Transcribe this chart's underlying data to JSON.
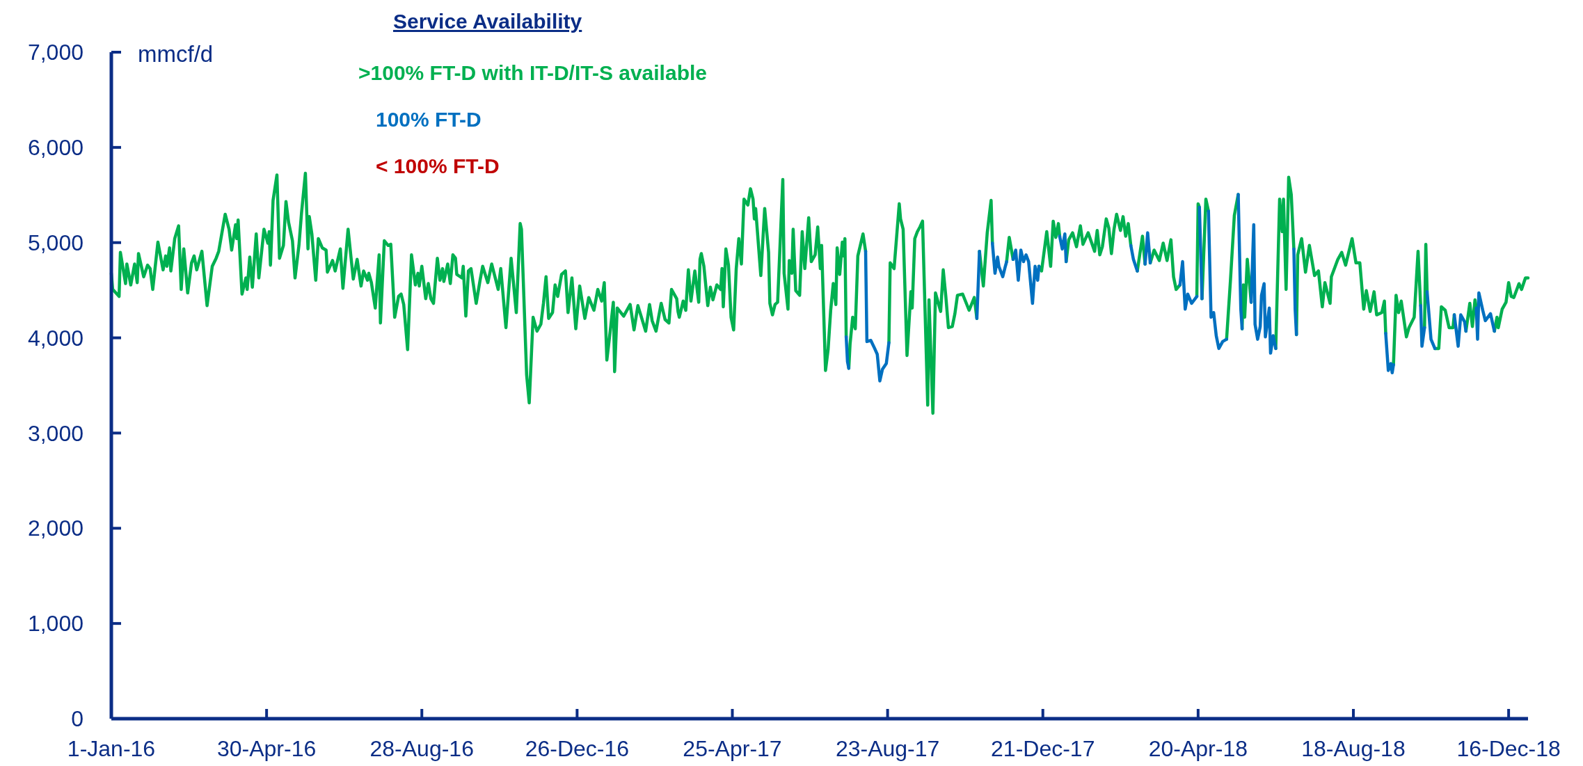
{
  "chart_data": {
    "type": "line",
    "legend_title": "Service Availability",
    "ylabel": "mmcf/d",
    "legend": "top left",
    "xlim": [
      "2016-01-01",
      "2018-12-31"
    ],
    "xticks": [
      {
        "value": "2016-01-01",
        "label": "1-Jan-16"
      },
      {
        "value": "2016-04-30",
        "label": "30-Apr-16"
      },
      {
        "value": "2016-08-28",
        "label": "28-Aug-16"
      },
      {
        "value": "2016-12-26",
        "label": "26-Dec-16"
      },
      {
        "value": "2017-04-25",
        "label": "25-Apr-17"
      },
      {
        "value": "2017-08-23",
        "label": "23-Aug-17"
      },
      {
        "value": "2017-12-21",
        "label": "21-Dec-17"
      },
      {
        "value": "2018-04-20",
        "label": "20-Apr-18"
      },
      {
        "value": "2018-08-18",
        "label": "18-Aug-18"
      },
      {
        "value": "2018-12-16",
        "label": "16-Dec-18"
      }
    ],
    "ylim": [
      0,
      7000
    ],
    "yticks": [
      0,
      {
        "value": 1000,
        "label": "1,000"
      },
      {
        "value": 2000,
        "label": "2,000"
      },
      {
        "value": 3000,
        "label": "3,000"
      },
      {
        "value": 4000,
        "label": "4,000"
      },
      {
        "value": 5000,
        "label": "5,000"
      },
      {
        "value": 6000,
        "label": "6,000"
      },
      {
        "value": 7000,
        "label": "7,000"
      }
    ],
    "series": [
      {
        "name": ">100% FT-D with IT-D/IT-S available",
        "color": "#00b050",
        "x": [
          "2016-01-01",
          "2016-01-02",
          "2016-01-07",
          "2016-01-08",
          "2016-01-12",
          "2016-01-13",
          "2016-01-16",
          "2016-01-19",
          "2016-01-21",
          "2016-01-22",
          "2016-01-26",
          "2016-01-29",
          "2016-01-31",
          "2016-02-02",
          "2016-02-06",
          "2016-02-10",
          "2016-02-12",
          "2016-02-13",
          "2016-02-15",
          "2016-02-16",
          "2016-02-19",
          "2016-02-22",
          "2016-02-24",
          "2016-02-26",
          "2016-02-29",
          "2016-03-03",
          "2016-03-05",
          "2016-03-07",
          "2016-03-11",
          "2016-03-15",
          "2016-03-19",
          "2016-03-22",
          "2016-03-24",
          "2016-03-29",
          "2016-04-01",
          "2016-04-03",
          "2016-04-06",
          "2016-04-07",
          "2016-04-08",
          "2016-04-11",
          "2016-04-14",
          "2016-04-15",
          "2016-04-17",
          "2016-04-19",
          "2016-04-22",
          "2016-04-24",
          "2016-04-28",
          "2016-05-01",
          "2016-05-02",
          "2016-05-03",
          "2016-05-05",
          "2016-05-08",
          "2016-05-10",
          "2016-05-13",
          "2016-05-15",
          "2016-05-17",
          "2016-05-20",
          "2016-05-22",
          "2016-05-25",
          "2016-05-27",
          "2016-05-30",
          "2016-06-01",
          "2016-06-02",
          "2016-06-04",
          "2016-06-07",
          "2016-06-09",
          "2016-06-12",
          "2016-06-15",
          "2016-06-16",
          "2016-06-20",
          "2016-06-22",
          "2016-06-26",
          "2016-06-28",
          "2016-07-02",
          "2016-07-06",
          "2016-07-09",
          "2016-07-12",
          "2016-07-14",
          "2016-07-17",
          "2016-07-18",
          "2016-07-20",
          "2016-07-23",
          "2016-07-26",
          "2016-07-27",
          "2016-07-30",
          "2016-08-02",
          "2016-08-04",
          "2016-08-07",
          "2016-08-10",
          "2016-08-12",
          "2016-08-14",
          "2016-08-17",
          "2016-08-20",
          "2016-08-23",
          "2016-08-25",
          "2016-08-26",
          "2016-08-28",
          "2016-08-31",
          "2016-09-02",
          "2016-09-04",
          "2016-09-06",
          "2016-09-09",
          "2016-09-11",
          "2016-09-13",
          "2016-09-14",
          "2016-09-17",
          "2016-09-19",
          "2016-09-21",
          "2016-09-23",
          "2016-09-24",
          "2016-09-28",
          "2016-09-29",
          "2016-10-01",
          "2016-10-03",
          "2016-10-05",
          "2016-10-09",
          "2016-10-12",
          "2016-10-14",
          "2016-10-18",
          "2016-10-21",
          "2016-10-26",
          "2016-10-28",
          "2016-11-01",
          "2016-11-05",
          "2016-11-09",
          "2016-11-12",
          "2016-11-13",
          "2016-11-17",
          "2016-11-19",
          "2016-11-22",
          "2016-11-25",
          "2016-11-28",
          "2016-11-30",
          "2016-12-02",
          "2016-12-04",
          "2016-12-07",
          "2016-12-09",
          "2016-12-11",
          "2016-12-14",
          "2016-12-17",
          "2016-12-19",
          "2016-12-22",
          "2016-12-25",
          "2016-12-28",
          "2017-01-01",
          "2017-01-04",
          "2017-01-08",
          "2017-01-11",
          "2017-01-14",
          "2017-01-16",
          "2017-01-18",
          "2017-01-21",
          "2017-01-23",
          "2017-01-24",
          "2017-01-26",
          "2017-01-31",
          "2017-02-05",
          "2017-02-08",
          "2017-02-11",
          "2017-02-17",
          "2017-02-20",
          "2017-02-22",
          "2017-02-25",
          "2017-03-01",
          "2017-03-04",
          "2017-03-07",
          "2017-03-09",
          "2017-03-13",
          "2017-03-14",
          "2017-03-15",
          "2017-03-18",
          "2017-03-20",
          "2017-03-22",
          "2017-03-24",
          "2017-03-27",
          "2017-03-30",
          "2017-03-31",
          "2017-04-01",
          "2017-04-03",
          "2017-04-06",
          "2017-04-08",
          "2017-04-10",
          "2017-04-13",
          "2017-04-16",
          "2017-04-17",
          "2017-04-18",
          "2017-04-20",
          "2017-04-22",
          "2017-04-24",
          "2017-04-26",
          "2017-04-28",
          "2017-04-30",
          "2017-05-02",
          "2017-05-04",
          "2017-05-07",
          "2017-05-09",
          "2017-05-11",
          "2017-05-12",
          "2017-05-13",
          "2017-05-17",
          "2017-05-20",
          "2017-05-23",
          "2017-05-24",
          "2017-05-26",
          "2017-05-28",
          "2017-05-30",
          "2017-06-03",
          "2017-06-04",
          "2017-06-07",
          "2017-06-08",
          "2017-06-10",
          "2017-06-11",
          "2017-06-13",
          "2017-06-16",
          "2017-06-18",
          "2017-06-20",
          "2017-06-23",
          "2017-06-25",
          "2017-06-28",
          "2017-06-30",
          "2017-07-02",
          "2017-07-03",
          "2017-07-06",
          "2017-07-08",
          "2017-07-10",
          "2017-07-12",
          "2017-07-14",
          "2017-07-15",
          "2017-07-17",
          "2017-07-19",
          "2017-07-20",
          "2017-07-21",
          "2017-07-22",
          "2017-07-23",
          "2017-07-24",
          "2017-07-25",
          "2017-07-27",
          "2017-07-29",
          "2017-07-31",
          "2017-08-04",
          "2017-08-06",
          "2017-08-07",
          "2017-08-10",
          "2017-08-13",
          "2017-08-15",
          "2017-08-17",
          "2017-08-19",
          "2017-08-22",
          "2017-08-24",
          "2017-08-25",
          "2017-08-28",
          "2017-08-29",
          "2017-09-01",
          "2017-09-02",
          "2017-09-04",
          "2017-09-07",
          "2017-09-10",
          "2017-09-11",
          "2017-09-13",
          "2017-09-15",
          "2017-09-17",
          "2017-09-19",
          "2017-09-23",
          "2017-09-24",
          "2017-09-27",
          "2017-09-29",
          "2017-10-03",
          "2017-10-05",
          "2017-10-07",
          "2017-10-09",
          "2017-10-12",
          "2017-10-14",
          "2017-10-16",
          "2017-10-20",
          "2017-10-25",
          "2017-10-29",
          "2017-10-31",
          "2017-11-01",
          "2017-11-02",
          "2017-11-05",
          "2017-11-08",
          "2017-11-11",
          "2017-11-12",
          "2017-11-14",
          "2017-11-16",
          "2017-11-17",
          "2017-11-20",
          "2017-11-22",
          "2017-11-23",
          "2017-11-25",
          "2017-11-28",
          "2017-11-30",
          "2017-12-02",
          "2017-12-04",
          "2017-12-06",
          "2017-12-08",
          "2017-12-10",
          "2017-12-13",
          "2017-12-15",
          "2017-12-17",
          "2017-12-18",
          "2017-12-20",
          "2017-12-24",
          "2017-12-27",
          "2017-12-29",
          "2017-12-31",
          "2018-01-02",
          "2018-01-03",
          "2018-01-05",
          "2018-01-07",
          "2018-01-08",
          "2018-01-10",
          "2018-01-13",
          "2018-01-16",
          "2018-01-19",
          "2018-01-21",
          "2018-01-25",
          "2018-01-30",
          "2018-02-01",
          "2018-02-03",
          "2018-02-05",
          "2018-02-08",
          "2018-02-10",
          "2018-02-12",
          "2018-02-14",
          "2018-02-16",
          "2018-02-19",
          "2018-02-21",
          "2018-02-23",
          "2018-02-25",
          "2018-02-27",
          "2018-03-01",
          "2018-03-04",
          "2018-03-08",
          "2018-03-10",
          "2018-03-12",
          "2018-03-14",
          "2018-03-17",
          "2018-03-21",
          "2018-03-24",
          "2018-03-27",
          "2018-03-30",
          "2018-04-01",
          "2018-04-03",
          "2018-04-06",
          "2018-04-08",
          "2018-04-10",
          "2018-04-12",
          "2018-04-15",
          "2018-04-19",
          "2018-04-20",
          "2018-04-21",
          "2018-04-22",
          "2018-04-23",
          "2018-04-26",
          "2018-04-28",
          "2018-04-30",
          "2018-05-02",
          "2018-05-04",
          "2018-05-06",
          "2018-05-09",
          "2018-05-12",
          "2018-05-15",
          "2018-05-18",
          "2018-05-21",
          "2018-05-23",
          "2018-05-24",
          "2018-05-25",
          "2018-05-26",
          "2018-05-28",
          "2018-05-31",
          "2018-06-02",
          "2018-06-03",
          "2018-06-05",
          "2018-06-07",
          "2018-06-08",
          "2018-06-10",
          "2018-06-11",
          "2018-06-14",
          "2018-06-15",
          "2018-06-17",
          "2018-06-19",
          "2018-06-22",
          "2018-06-24",
          "2018-06-25",
          "2018-06-27",
          "2018-06-29",
          "2018-07-01",
          "2018-07-03",
          "2018-07-04",
          "2018-07-05",
          "2018-07-06",
          "2018-07-09",
          "2018-07-12",
          "2018-07-15",
          "2018-07-19",
          "2018-07-22",
          "2018-07-25",
          "2018-07-27",
          "2018-07-31",
          "2018-08-01",
          "2018-08-06",
          "2018-08-09",
          "2018-08-12",
          "2018-08-17",
          "2018-08-20",
          "2018-08-23",
          "2018-08-26",
          "2018-08-28",
          "2018-08-31",
          "2018-09-03",
          "2018-09-05",
          "2018-09-09",
          "2018-09-11",
          "2018-09-12",
          "2018-09-14",
          "2018-09-16",
          "2018-09-17",
          "2018-09-18",
          "2018-09-20",
          "2018-09-22",
          "2018-09-24",
          "2018-09-28",
          "2018-09-30",
          "2018-10-04",
          "2018-10-07",
          "2018-10-09",
          "2018-10-10",
          "2018-10-12",
          "2018-10-13",
          "2018-10-14",
          "2018-10-17",
          "2018-10-20",
          "2018-10-23",
          "2018-10-25",
          "2018-10-28",
          "2018-10-31",
          "2018-11-03",
          "2018-11-04",
          "2018-11-07",
          "2018-11-09",
          "2018-11-12",
          "2018-11-13",
          "2018-11-16",
          "2018-11-18",
          "2018-11-20",
          "2018-11-21",
          "2018-11-22",
          "2018-11-23",
          "2018-11-26",
          "2018-11-28",
          "2018-12-02",
          "2018-12-05",
          "2018-12-07",
          "2018-12-08",
          "2018-12-11",
          "2018-12-14",
          "2018-12-16",
          "2018-12-18",
          "2018-12-20",
          "2018-12-24",
          "2018-12-26",
          "2018-12-29",
          "2018-12-31"
        ],
        "values": [
          4678,
          4510,
          4435,
          4897,
          4570,
          4775,
          4556,
          4775,
          4580,
          4885,
          4641,
          4763,
          4727,
          4508,
          5006,
          4714,
          4860,
          4751,
          4945,
          4702,
          5042,
          5176,
          4508,
          4934,
          4471,
          4787,
          4860,
          4714,
          4909,
          4338,
          4751,
          4836,
          4909,
          5298,
          5140,
          4921,
          5188,
          5042,
          5237,
          4459,
          4629,
          4508,
          4848,
          4532,
          5091,
          4629,
          5140,
          4994,
          5115,
          4763,
          5443,
          5711,
          4836,
          4970,
          5431,
          5213,
          5019,
          4629,
          4970,
          5310,
          5728,
          4934,
          5273,
          5091,
          4605,
          5042,
          4945,
          4921,
          4690,
          4812,
          4702,
          4934,
          4520,
          5140,
          4617,
          4824,
          4544,
          4702,
          4605,
          4678,
          4580,
          4313,
          4872,
          4156,
          5019,
          4970,
          4982,
          4216,
          4435,
          4459,
          4350,
          3876,
          4872,
          4556,
          4678,
          4544,
          4751,
          4411,
          4570,
          4411,
          4362,
          4836,
          4605,
          4727,
          4593,
          4775,
          4570,
          4872,
          4836,
          4666,
          4629,
          4751,
          4228,
          4702,
          4727,
          4362,
          4605,
          4751,
          4580,
          4775,
          4508,
          4727,
          4107,
          4836,
          4265,
          5200,
          5140,
          3609,
          3317,
          4216,
          4070,
          4143,
          4362,
          4642,
          4204,
          4265,
          4556,
          4435,
          4666,
          4702,
          4265,
          4629,
          4095,
          4544,
          4204,
          4423,
          4289,
          4508,
          4386,
          4580,
          3767,
          4119,
          4374,
          3645,
          4313,
          4228,
          4350,
          4083,
          4338,
          4070,
          4350,
          4180,
          4070,
          4362,
          4192,
          4156,
          4508,
          4411,
          4277,
          4216,
          4386,
          4289,
          4714,
          4386,
          4702,
          4374,
          4824,
          4885,
          4751,
          4338,
          4532,
          4399,
          4556,
          4508,
          4727,
          4326,
          4934,
          4763,
          4216,
          4083,
          4727,
          5042,
          4775,
          5456,
          5395,
          5565,
          5456,
          5249,
          5358,
          4654,
          5358,
          4897,
          4362,
          4241,
          4350,
          4374,
          5662,
          4678,
          4301,
          4812,
          4678,
          5140,
          4496,
          4447,
          5115,
          4727,
          5261,
          4800,
          4872,
          5164,
          4727,
          4970,
          3657,
          3876,
          4289,
          4570,
          4350,
          4945,
          4666,
          5006,
          4860,
          5042,
          4010,
          null,
          3680,
          3937,
          4216,
          4095,
          4860,
          5091,
          4909,
          null,
          null,
          null,
          null,
          null,
          null,
          null,
          3949,
          4787,
          4727,
          4897,
          5408,
          5249,
          5140,
          3815,
          4484,
          4313,
          5042,
          5115,
          5164,
          5225,
          3293,
          4399,
          3208,
          4471,
          4277,
          4714,
          4435,
          4107,
          4119,
          4253,
          4447,
          4459,
          4289,
          4423,
          4204,
          null,
          4909,
          4544,
          5103,
          5443,
          4994,
          null,
          null,
          null,
          null,
          null,
          4800,
          5055,
          4824,
          null,
          null,
          null,
          null,
          null,
          null,
          null,
          null,
          null,
          4751,
          4702,
          5115,
          4751,
          5225,
          5055,
          5200,
          5067,
          null,
          null,
          4800,
          5030,
          5103,
          4957,
          5176,
          4982,
          5103,
          4909,
          5128,
          4872,
          4957,
          5249,
          5152,
          4885,
          5140,
          5298,
          5128,
          5273,
          5067,
          5200,
          4970,
          null,
          4702,
          5067,
          4775,
          null,
          4787,
          4921,
          4812,
          4994,
          4812,
          5030,
          4642,
          4508,
          4556,
          null,
          null,
          null,
          null,
          4435,
          5408,
          5370,
          null,
          4411,
          5456,
          5330,
          null,
          null,
          null,
          null,
          null,
          3985,
          4605,
          5285,
          5505,
          null,
          4095,
          4556,
          4216,
          4824,
          4374,
          null,
          null,
          null,
          null,
          null,
          null,
          null,
          null,
          null,
          null,
          3888,
          5456,
          5115,
          5456,
          4508,
          5686,
          5504,
          4933,
          null,
          4034,
          4872,
          5042,
          4690,
          4970,
          4654,
          4702,
          4326,
          4580,
          4362,
          4642,
          4824,
          4897,
          4763,
          5042,
          4787,
          4787,
          4301,
          4496,
          4277,
          4484,
          4241,
          4265,
          4386,
          4046,
          null,
          null,
          null,
          3718,
          4447,
          4265,
          4386,
          4010,
          4107,
          4216,
          4909,
          4338,
          null,
          4107,
          4982,
          4484,
          null,
          3888,
          3888,
          4326,
          4289,
          4107,
          4107,
          4241,
          null,
          null,
          null,
          4070,
          4362,
          4119,
          4399,
          4313,
          null,
          null,
          null,
          null,
          null,
          4070,
          4216,
          4107,
          4301,
          4374,
          4580,
          4435,
          4423,
          4569,
          4508,
          4629,
          4629
        ]
      },
      {
        "name": "100% FT-D",
        "color": "#0070c0",
        "x": [
          "2017-07-22",
          "2017-07-23",
          "2017-07-24",
          "2017-07-30",
          "2017-08-06",
          "2017-08-07",
          "2017-08-10",
          "2017-08-13",
          "2017-08-15",
          "2017-08-17",
          "2017-08-19",
          "2017-08-22",
          "2017-08-24",
          "2017-09-30",
          "2017-10-31",
          "2017-11-01",
          "2017-11-02",
          "2017-11-05",
          "2017-11-12",
          "2017-11-14",
          "2017-11-16",
          "2017-11-17",
          "2017-11-20",
          "2017-11-22",
          "2017-11-23",
          "2017-11-25",
          "2017-11-28",
          "2017-11-30",
          "2017-12-02",
          "2017-12-04",
          "2017-12-06",
          "2017-12-08",
          "2017-12-10",
          "2017-12-13",
          "2017-12-15",
          "2017-12-17",
          "2017-12-18",
          "2017-12-24",
          "2018-01-03",
          "2018-01-05",
          "2018-01-07",
          "2018-01-08",
          "2018-02-01",
          "2018-02-27",
          "2018-03-01",
          "2018-03-04",
          "2018-03-08",
          "2018-03-10",
          "2018-03-12",
          "2018-03-14",
          "2018-03-24",
          "2018-04-06",
          "2018-04-08",
          "2018-04-10",
          "2018-04-12",
          "2018-04-15",
          "2018-04-19",
          "2018-04-20",
          "2018-04-21",
          "2018-04-22",
          "2018-04-23",
          "2018-04-26",
          "2018-04-28",
          "2018-04-30",
          "2018-05-02",
          "2018-05-04",
          "2018-05-06",
          "2018-05-09",
          "2018-05-12",
          "2018-05-18",
          "2018-05-21",
          "2018-05-23",
          "2018-05-24",
          "2018-05-28",
          "2018-05-31",
          "2018-06-02",
          "2018-06-03",
          "2018-06-05",
          "2018-06-07",
          "2018-06-08",
          "2018-06-10",
          "2018-06-11",
          "2018-06-14",
          "2018-06-15",
          "2018-06-17",
          "2018-06-19",
          "2018-06-25",
          "2018-07-03",
          "2018-07-04",
          "2018-07-05",
          "2018-08-01",
          "2018-09-12",
          "2018-09-14",
          "2018-09-16",
          "2018-09-17",
          "2018-09-18",
          "2018-09-24",
          "2018-10-09",
          "2018-10-10",
          "2018-10-12",
          "2018-10-13",
          "2018-10-14",
          "2018-10-17",
          "2018-10-20",
          "2018-10-28",
          "2018-11-04",
          "2018-11-07",
          "2018-11-09",
          "2018-11-12",
          "2018-11-13",
          "2018-11-18",
          "2018-11-21",
          "2018-11-22",
          "2018-11-23",
          "2018-11-26",
          "2018-11-28",
          "2018-12-02",
          "2018-12-05"
        ],
        "values": [
          4010,
          3750,
          3680,
          null,
          4909,
          3961,
          3973,
          3888,
          3827,
          3548,
          3670,
          3730,
          3949,
          null,
          4204,
          4550,
          4909,
          null,
          4994,
          4678,
          4848,
          4751,
          4642,
          4751,
          4800,
          null,
          4824,
          4921,
          4605,
          4921,
          4800,
          4872,
          4800,
          4362,
          4751,
          4605,
          4751,
          null,
          5067,
          4933,
          5091,
          4800,
          null,
          4970,
          4824,
          4702,
          null,
          4775,
          5103,
          4787,
          null,
          4556,
          4800,
          4301,
          4459,
          4362,
          4435,
          null,
          5370,
          4900,
          4411,
          null,
          5330,
          4216,
          4265,
          4022,
          3888,
          3961,
          3985,
          null,
          5505,
          4301,
          4095,
          null,
          4374,
          5188,
          4143,
          3985,
          4119,
          4447,
          4569,
          4010,
          4313,
          3839,
          4022,
          3888,
          null,
          4933,
          4300,
          4034,
          null,
          4046,
          3657,
          3730,
          3633,
          3718,
          null,
          4338,
          3912,
          4107,
          null,
          4484,
          3985,
          3888,
          null,
          4241,
          3912,
          4241,
          4168,
          4070,
          null,
          4313,
          3985,
          4471,
          4289,
          4180,
          4253,
          4070
        ]
      },
      {
        "name": "< 100% FT-D",
        "color": "#c00000"
      }
    ]
  }
}
